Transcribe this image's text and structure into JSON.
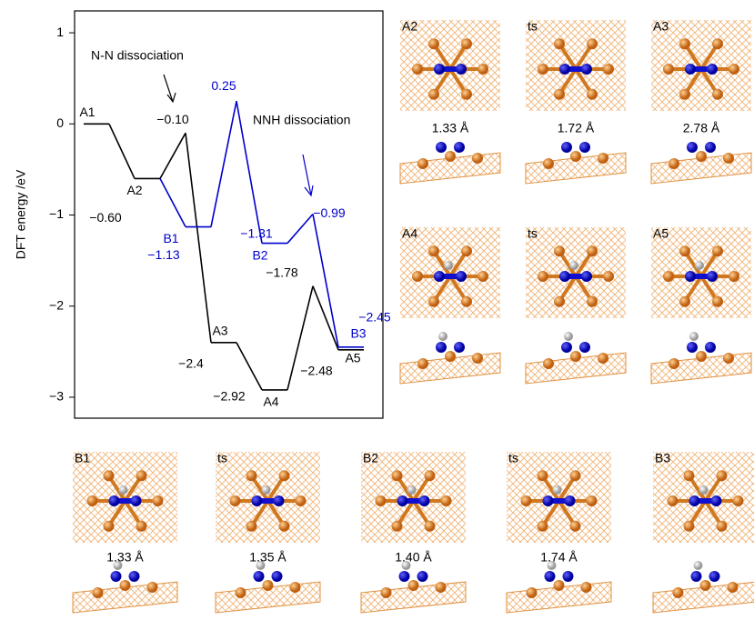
{
  "chart_data": {
    "type": "energy-profile",
    "ylabel": "DFT energy /eV",
    "ylim": [
      -3.23,
      1.24
    ],
    "yticks": [
      1,
      0,
      {
        "value": -1,
        "label": "−1"
      },
      {
        "value": -2,
        "label": "−2"
      },
      {
        "value": -3,
        "label": "−3"
      }
    ],
    "series": [
      {
        "name": "N-N dissociation",
        "color": "#000000",
        "categories": [
          "A1",
          "A2",
          null,
          "A3",
          "A4",
          null,
          "A5"
        ],
        "values": [
          0,
          -0.6,
          -0.1,
          -2.4,
          -2.92,
          -1.78,
          -2.48
        ],
        "value_labels": [
          null,
          "−0.60",
          "−0.10",
          "−2.4",
          "−2.92",
          "−1.78",
          "−2.48"
        ]
      },
      {
        "name": "NNH dissociation",
        "color": "#0000cc",
        "categories": [
          "B1",
          null,
          "B2",
          null,
          "B3"
        ],
        "values": [
          -1.13,
          0.25,
          -1.31,
          -0.99,
          -2.45
        ],
        "value_labels": [
          "−1.13",
          "0.25",
          "−1.31",
          "−0.99",
          "−2.45"
        ]
      }
    ]
  },
  "panels": [
    {
      "label": "A2",
      "bond": "1.33 Å"
    },
    {
      "label": "ts",
      "bond": "1.72 Å"
    },
    {
      "label": "A3",
      "bond": "2.78 Å"
    },
    {
      "label": "A4"
    },
    {
      "label": "ts"
    },
    {
      "label": "A5"
    },
    {
      "label": "B1",
      "bond": "1.33 Å"
    },
    {
      "label": "ts",
      "bond": "1.35 Å"
    },
    {
      "label": "B2",
      "bond": "1.40 Å"
    },
    {
      "label": "ts",
      "bond": "1.74 Å"
    },
    {
      "label": "B3"
    }
  ]
}
